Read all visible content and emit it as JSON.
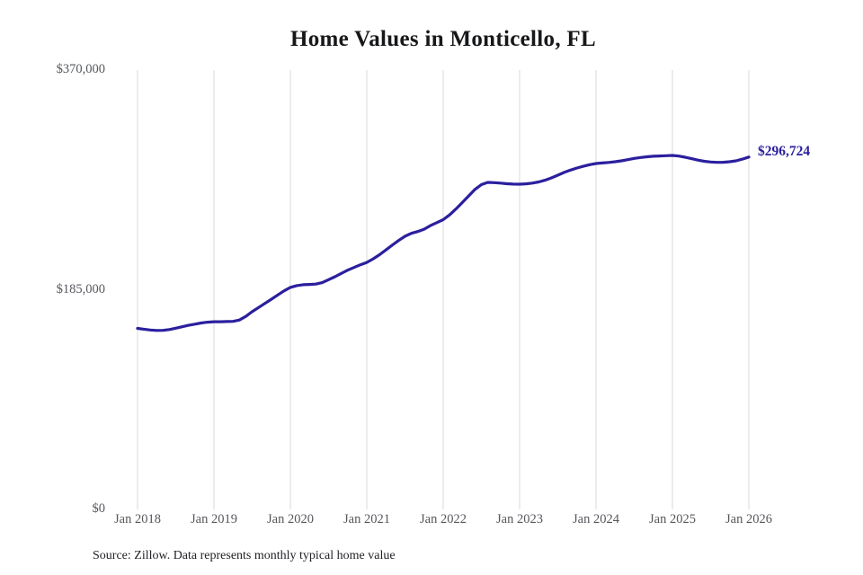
{
  "chart_data": {
    "type": "line",
    "title": "Home Values in Monticello, FL",
    "xlabel": "",
    "ylabel": "",
    "ylim": [
      0,
      370000
    ],
    "y_ticks": [
      370000,
      185000,
      0
    ],
    "y_tick_labels": [
      "$370,000",
      "$185,000",
      "$0"
    ],
    "x_tick_labels": [
      "Jan 2018",
      "Jan 2019",
      "Jan 2020",
      "Jan 2021",
      "Jan 2022",
      "Jan 2023",
      "Jan 2024",
      "Jan 2025",
      "Jan 2026"
    ],
    "grid": "vertical-only",
    "legend": "none",
    "interval": "monthly",
    "start_month": "2018-01",
    "end_month": "2026-01",
    "series": [
      {
        "name": "Typical home value",
        "values": [
          152500,
          151800,
          151100,
          150700,
          150800,
          151500,
          152600,
          153800,
          155000,
          156000,
          157000,
          157700,
          158100,
          158100,
          158200,
          158400,
          159500,
          162500,
          166500,
          170000,
          173500,
          177000,
          180500,
          184000,
          187000,
          188500,
          189200,
          189500,
          189800,
          191000,
          193500,
          196000,
          198800,
          201500,
          203800,
          206000,
          208000,
          211000,
          214500,
          218500,
          222500,
          226500,
          230000,
          232500,
          234000,
          236000,
          239000,
          241500,
          244000,
          248000,
          253000,
          258500,
          264000,
          269500,
          273500,
          275400,
          275200,
          274800,
          274300,
          274000,
          273900,
          274200,
          274800,
          275800,
          277200,
          279200,
          281500,
          283800,
          285800,
          287500,
          289000,
          290300,
          291300,
          291800,
          292200,
          292800,
          293600,
          294600,
          295600,
          296400,
          297000,
          297400,
          297700,
          297900,
          298100,
          297600,
          296600,
          295400,
          294200,
          293200,
          292600,
          292300,
          292400,
          292800,
          293600,
          295000,
          296724
        ]
      }
    ],
    "annotation": {
      "text": "$296,724",
      "position": "end-of-line"
    },
    "source_note": "Source: Zillow. Data represents monthly typical home value",
    "colors": {
      "line": "#2b1f9e",
      "grid": "#d9d9d9",
      "tick_text": "#55575c",
      "title_text": "#17181a",
      "annotation_text": "#2b1f9e",
      "source_text": "#212226",
      "background": "#ffffff"
    }
  }
}
